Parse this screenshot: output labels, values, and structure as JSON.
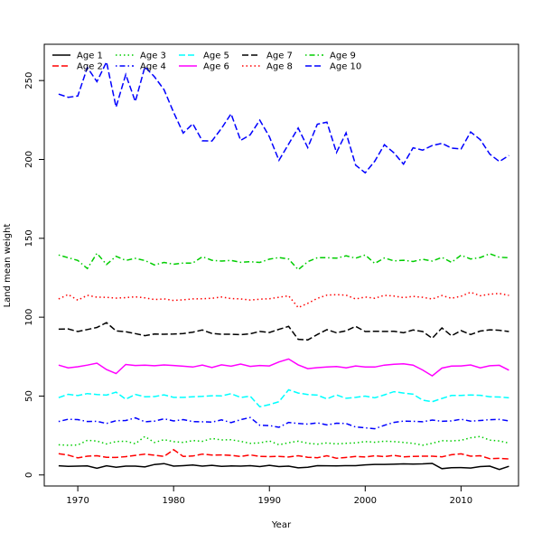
{
  "chart_data": {
    "type": "line",
    "title": "",
    "xlabel": "Year",
    "ylabel": "Land mean weight",
    "xlim": [
      1966.5,
      2016.0
    ],
    "ylim": [
      -7,
      273
    ],
    "xticks": [
      1970,
      1980,
      1990,
      2000,
      2010
    ],
    "yticks": [
      0,
      50,
      100,
      150,
      200,
      250
    ],
    "grid": false,
    "legend_position": "top-left",
    "x": [
      1968,
      1969,
      1970,
      1971,
      1972,
      1973,
      1974,
      1975,
      1976,
      1977,
      1978,
      1979,
      1980,
      1981,
      1982,
      1983,
      1984,
      1985,
      1986,
      1987,
      1988,
      1989,
      1990,
      1991,
      1992,
      1993,
      1994,
      1995,
      1996,
      1997,
      1998,
      1999,
      2000,
      2001,
      2002,
      2003,
      2004,
      2005,
      2006,
      2007,
      2008,
      2009,
      2010,
      2011,
      2012,
      2013,
      2014,
      2015
    ],
    "series": [
      {
        "name": "Age 1",
        "color": "#000000",
        "dash": "solid",
        "values": [
          5.8,
          5.5,
          5.6,
          5.7,
          4.2,
          5.8,
          4.9,
          5.6,
          5.6,
          5.1,
          6.6,
          7.2,
          5.6,
          5.9,
          6.3,
          5.6,
          6.1,
          5.4,
          5.7,
          5.6,
          5.9,
          5.3,
          6.1,
          5.3,
          5.6,
          4.5,
          4.9,
          5.9,
          5.8,
          5.7,
          5.9,
          5.9,
          6.4,
          6.7,
          6.7,
          6.8,
          7.0,
          6.9,
          7.0,
          7.3,
          4.0,
          4.6,
          4.7,
          4.4,
          5.3,
          5.6,
          3.5,
          5.5
        ]
      },
      {
        "name": "Age 2",
        "color": "#ff0000",
        "dash": "longdash",
        "values": [
          13.5,
          12.6,
          10.8,
          11.9,
          12.2,
          11.2,
          11.1,
          11.6,
          12.4,
          13.2,
          12.5,
          11.7,
          16.0,
          11.7,
          12.0,
          13.2,
          12.6,
          12.7,
          12.4,
          11.7,
          12.7,
          11.8,
          11.6,
          11.8,
          11.4,
          12.2,
          11.2,
          10.9,
          12.2,
          10.6,
          11.1,
          11.7,
          11.4,
          12.2,
          11.6,
          12.4,
          11.5,
          11.8,
          11.9,
          11.9,
          11.5,
          12.8,
          13.4,
          11.9,
          12.2,
          10.3,
          10.5,
          10.1
        ]
      },
      {
        "name": "Age 3",
        "color": "#00cd00",
        "dash": "dotted",
        "values": [
          19.1,
          18.8,
          19.0,
          22.0,
          21.5,
          19.6,
          21.2,
          21.4,
          19.8,
          24.4,
          20.6,
          22.4,
          21.1,
          20.6,
          21.8,
          21.3,
          23.1,
          22.2,
          22.3,
          21.3,
          20.0,
          20.3,
          21.6,
          19.1,
          20.4,
          21.4,
          20.1,
          19.5,
          20.3,
          19.6,
          20.1,
          20.3,
          21.2,
          20.7,
          21.4,
          21.2,
          20.6,
          20.0,
          18.9,
          20.1,
          21.7,
          21.6,
          22.0,
          23.6,
          24.4,
          22.1,
          21.6,
          20.2
        ]
      },
      {
        "name": "Age 4",
        "color": "#0000ff",
        "dash": "dotdash",
        "values": [
          33.9,
          35.3,
          35.1,
          33.9,
          34.0,
          32.6,
          34.4,
          34.5,
          36.2,
          33.7,
          34.1,
          35.6,
          34.2,
          35.1,
          33.8,
          33.7,
          33.5,
          34.9,
          33.2,
          35.0,
          36.4,
          31.5,
          31.3,
          30.2,
          33.3,
          32.6,
          32.2,
          33.0,
          31.7,
          32.8,
          32.6,
          30.4,
          29.9,
          29.3,
          31.5,
          33.3,
          34.1,
          34.0,
          33.7,
          34.8,
          34.0,
          34.2,
          35.3,
          34.1,
          34.5,
          35.0,
          35.2,
          34.3
        ]
      },
      {
        "name": "Age 5",
        "color": "#00ffff",
        "dash": "longdash",
        "values": [
          49.0,
          51.1,
          50.3,
          51.6,
          51.0,
          50.6,
          52.5,
          48.0,
          51.0,
          49.6,
          49.7,
          50.8,
          49.2,
          49.2,
          49.6,
          49.8,
          50.2,
          50.1,
          51.5,
          49.1,
          49.9,
          43.2,
          44.6,
          46.4,
          54.0,
          51.9,
          51.0,
          50.6,
          48.2,
          50.7,
          48.6,
          49.2,
          50.0,
          48.9,
          50.8,
          52.8,
          51.9,
          51.2,
          47.4,
          46.4,
          48.5,
          50.4,
          50.4,
          50.7,
          50.5,
          49.6,
          49.4,
          48.9
        ]
      },
      {
        "name": "Age 6",
        "color": "#ff00ff",
        "dash": "solid",
        "values": [
          69.6,
          67.9,
          68.6,
          69.6,
          70.9,
          66.8,
          64.3,
          70.0,
          69.4,
          69.6,
          69.2,
          69.7,
          69.4,
          68.9,
          68.4,
          69.6,
          68.1,
          69.8,
          68.9,
          70.3,
          68.8,
          69.4,
          69.1,
          71.6,
          73.5,
          69.8,
          67.4,
          68.0,
          68.4,
          68.7,
          67.9,
          69.1,
          68.4,
          68.4,
          69.6,
          70.2,
          70.4,
          69.6,
          66.5,
          62.8,
          67.7,
          69.0,
          69.1,
          69.7,
          67.9,
          69.2,
          69.5,
          66.4
        ]
      },
      {
        "name": "Age 7",
        "color": "#000000",
        "dash": "longdash",
        "values": [
          92.4,
          92.6,
          90.9,
          92.2,
          93.5,
          96.5,
          91.3,
          90.8,
          89.6,
          88.3,
          89.3,
          89.2,
          89.3,
          89.6,
          90.5,
          91.9,
          89.7,
          89.2,
          89.2,
          88.9,
          89.5,
          91.0,
          90.3,
          92.3,
          94.2,
          86.0,
          85.6,
          89.0,
          92.1,
          90.1,
          91.4,
          94.2,
          90.9,
          91.1,
          91.0,
          91.1,
          90.1,
          91.9,
          90.9,
          86.6,
          93.2,
          88.2,
          91.5,
          89.0,
          91.2,
          92.0,
          91.7,
          90.9
        ]
      },
      {
        "name": "Age 8",
        "color": "#ff0000",
        "dash": "dotted",
        "values": [
          111.6,
          114.4,
          110.8,
          113.9,
          112.7,
          112.6,
          112.1,
          112.4,
          112.9,
          112.3,
          111.2,
          111.6,
          110.6,
          111.0,
          111.6,
          111.7,
          112.0,
          112.8,
          111.8,
          111.6,
          110.9,
          111.4,
          111.7,
          112.6,
          113.6,
          106.1,
          108.8,
          111.9,
          114.0,
          114.3,
          114.0,
          111.5,
          112.8,
          112.0,
          113.9,
          113.4,
          112.4,
          113.2,
          112.6,
          111.5,
          113.7,
          112.0,
          113.3,
          115.8,
          113.6,
          114.6,
          115.0,
          113.8
        ]
      },
      {
        "name": "Age 9",
        "color": "#00cd00",
        "dash": "dotdash",
        "values": [
          139.4,
          137.7,
          136.0,
          130.8,
          140.5,
          133.4,
          138.6,
          136.0,
          137.3,
          135.9,
          133.1,
          134.7,
          133.6,
          134.3,
          134.3,
          138.3,
          136.1,
          135.6,
          136.0,
          134.8,
          135.2,
          134.7,
          136.8,
          137.8,
          136.9,
          130.1,
          135.2,
          137.7,
          137.7,
          137.4,
          138.9,
          137.4,
          139.4,
          134.1,
          137.5,
          135.7,
          136.1,
          135.3,
          136.7,
          135.6,
          137.9,
          134.8,
          139.3,
          136.9,
          137.8,
          140.2,
          138.0,
          137.7
        ]
      },
      {
        "name": "Age 10",
        "color": "#0000ff",
        "dash": "longdash",
        "values": [
          241.4,
          239.4,
          240.2,
          258.3,
          249.3,
          261.8,
          233.2,
          253.8,
          236.7,
          258.7,
          252.4,
          244.2,
          229.8,
          216.7,
          222.6,
          211.8,
          211.7,
          219.7,
          228.9,
          212.1,
          215.6,
          224.9,
          214.4,
          199.4,
          209.7,
          219.9,
          207.5,
          222.3,
          223.6,
          204.4,
          216.8,
          196.4,
          191.5,
          198.9,
          209.3,
          204.2,
          197.0,
          207.4,
          205.9,
          208.8,
          210.2,
          207.2,
          206.6,
          217.4,
          212.6,
          203.4,
          198.7,
          202.5
        ]
      }
    ]
  }
}
